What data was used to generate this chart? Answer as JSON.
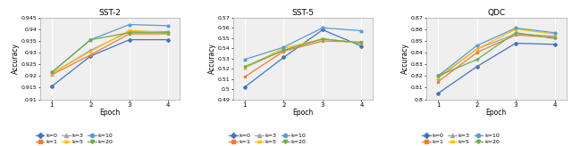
{
  "epochs": [
    1,
    2,
    3,
    4
  ],
  "sst2": {
    "title": "SST-2",
    "ylim": [
      0.91,
      0.945
    ],
    "yticks": [
      0.91,
      0.915,
      0.92,
      0.925,
      0.93,
      0.935,
      0.94,
      0.945
    ],
    "series": {
      "k=0": [
        0.9155,
        0.9285,
        0.9355,
        0.9355
      ],
      "k=1": [
        0.9205,
        0.929,
        0.938,
        0.938
      ],
      "k=3": [
        0.921,
        0.931,
        0.939,
        0.939
      ],
      "k=5": [
        0.921,
        0.9305,
        0.9395,
        0.9385
      ],
      "k=10": [
        0.9215,
        0.9355,
        0.942,
        0.9415
      ],
      "k=20": [
        0.9215,
        0.9355,
        0.9385,
        0.9385
      ]
    }
  },
  "sst5": {
    "title": "SST-5",
    "ylim": [
      0.49,
      0.57
    ],
    "yticks": [
      0.49,
      0.5,
      0.51,
      0.52,
      0.53,
      0.54,
      0.55,
      0.56,
      0.57
    ],
    "series": {
      "k=0": [
        0.502,
        0.531,
        0.558,
        0.542
      ],
      "k=1": [
        0.512,
        0.537,
        0.547,
        0.546
      ],
      "k=3": [
        0.521,
        0.538,
        0.549,
        0.545
      ],
      "k=5": [
        0.521,
        0.54,
        0.549,
        0.545
      ],
      "k=10": [
        0.529,
        0.541,
        0.56,
        0.557
      ],
      "k=20": [
        0.522,
        0.538,
        0.549,
        0.545
      ]
    }
  },
  "qdc": {
    "title": "QDC",
    "ylim": [
      0.8,
      0.87
    ],
    "yticks": [
      0.8,
      0.81,
      0.82,
      0.83,
      0.84,
      0.85,
      0.86,
      0.87
    ],
    "series": {
      "k=0": [
        0.805,
        0.828,
        0.848,
        0.847
      ],
      "k=1": [
        0.815,
        0.84,
        0.855,
        0.853
      ],
      "k=3": [
        0.818,
        0.843,
        0.856,
        0.854
      ],
      "k=5": [
        0.819,
        0.843,
        0.86,
        0.856
      ],
      "k=10": [
        0.82,
        0.846,
        0.861,
        0.857
      ],
      "k=20": [
        0.82,
        0.834,
        0.857,
        0.852
      ]
    }
  },
  "series_keys": [
    "k=0",
    "k=1",
    "k=3",
    "k=5",
    "k=10",
    "k=20"
  ],
  "colors": {
    "k=0": "#4472C4",
    "k=1": "#ED7D31",
    "k=3": "#A5A5A5",
    "k=5": "#FFC000",
    "k=10": "#5B9BD5",
    "k=20": "#70AD47"
  },
  "markers": {
    "k=0": "D",
    "k=1": "s",
    "k=3": "^",
    "k=5": "x",
    "k=10": "o",
    "k=20": "v"
  },
  "figsize": [
    6.4,
    1.64
  ],
  "dpi": 100
}
